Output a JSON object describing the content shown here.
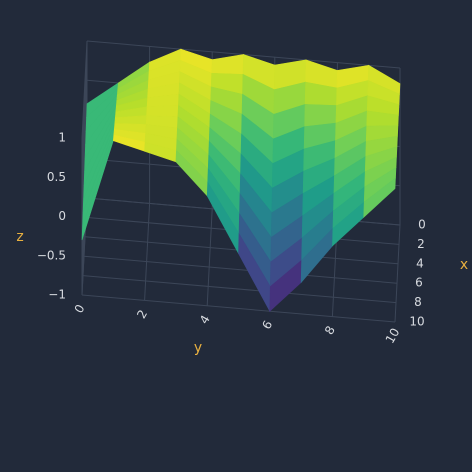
{
  "chart_data": {
    "type": "surface",
    "colorscale": "Viridis",
    "x_label": "x",
    "y_label": "y",
    "z_label": "z",
    "x": [
      0,
      1,
      2,
      3,
      4,
      5,
      6,
      7,
      8,
      9,
      10
    ],
    "y": [
      0,
      1,
      2,
      3,
      4,
      5,
      6,
      7,
      8,
      9,
      10
    ],
    "z": [
      [
        0.2,
        0.5,
        0.8,
        1,
        0.9,
        1,
        0.9,
        1,
        0.9,
        1,
        0.8
      ],
      [
        0.15,
        0.55,
        0.81,
        0.98,
        0.85,
        0.87,
        0.71,
        0.84,
        0.8,
        0.93,
        0.79
      ],
      [
        0.1,
        0.6,
        0.82,
        0.96,
        0.8,
        0.74,
        0.52,
        0.68,
        0.7,
        0.86,
        0.78
      ],
      [
        0.05,
        0.65,
        0.83,
        0.94,
        0.75,
        0.61,
        0.33,
        0.52,
        0.6,
        0.79,
        0.77
      ],
      [
        0,
        0.7,
        0.84,
        0.92,
        0.7,
        0.48,
        0.14,
        0.36,
        0.5,
        0.72,
        0.76
      ],
      [
        -0.05,
        0.75,
        0.85,
        0.9,
        0.65,
        0.35,
        -0.05,
        0.2,
        0.4,
        0.65,
        0.75
      ],
      [
        -0.1,
        0.8,
        0.86,
        0.88,
        0.6,
        0.22,
        -0.24,
        0.04,
        0.3,
        0.58,
        0.74
      ],
      [
        -0.15,
        0.85,
        0.87,
        0.86,
        0.55,
        0.09,
        -0.43,
        -0.12,
        0.2,
        0.51,
        0.73
      ],
      [
        -0.2,
        0.9,
        0.88,
        0.84,
        0.5,
        -0.04,
        -0.62,
        -0.28,
        0.1,
        0.44,
        0.72
      ],
      [
        -0.25,
        0.95,
        0.89,
        0.82,
        0.45,
        -0.17,
        -0.81,
        -0.44,
        0,
        0.37,
        0.71
      ],
      [
        -0.3,
        1,
        0.9,
        0.8,
        0.4,
        -0.3,
        -1,
        -0.6,
        -0.1,
        0.3,
        0.7
      ]
    ],
    "xlim": [
      0,
      10
    ],
    "ylim": [
      0,
      10
    ],
    "zlim": [
      -1,
      1
    ],
    "xticks": [
      0,
      2,
      4,
      6,
      8,
      10
    ],
    "yticks": [
      0,
      2,
      4,
      6,
      8,
      10
    ],
    "zticks": [
      {
        "value": -1,
        "label": "−1"
      },
      {
        "value": -0.5,
        "label": "−0.5"
      },
      0,
      0.5,
      1
    ],
    "grid": true
  }
}
